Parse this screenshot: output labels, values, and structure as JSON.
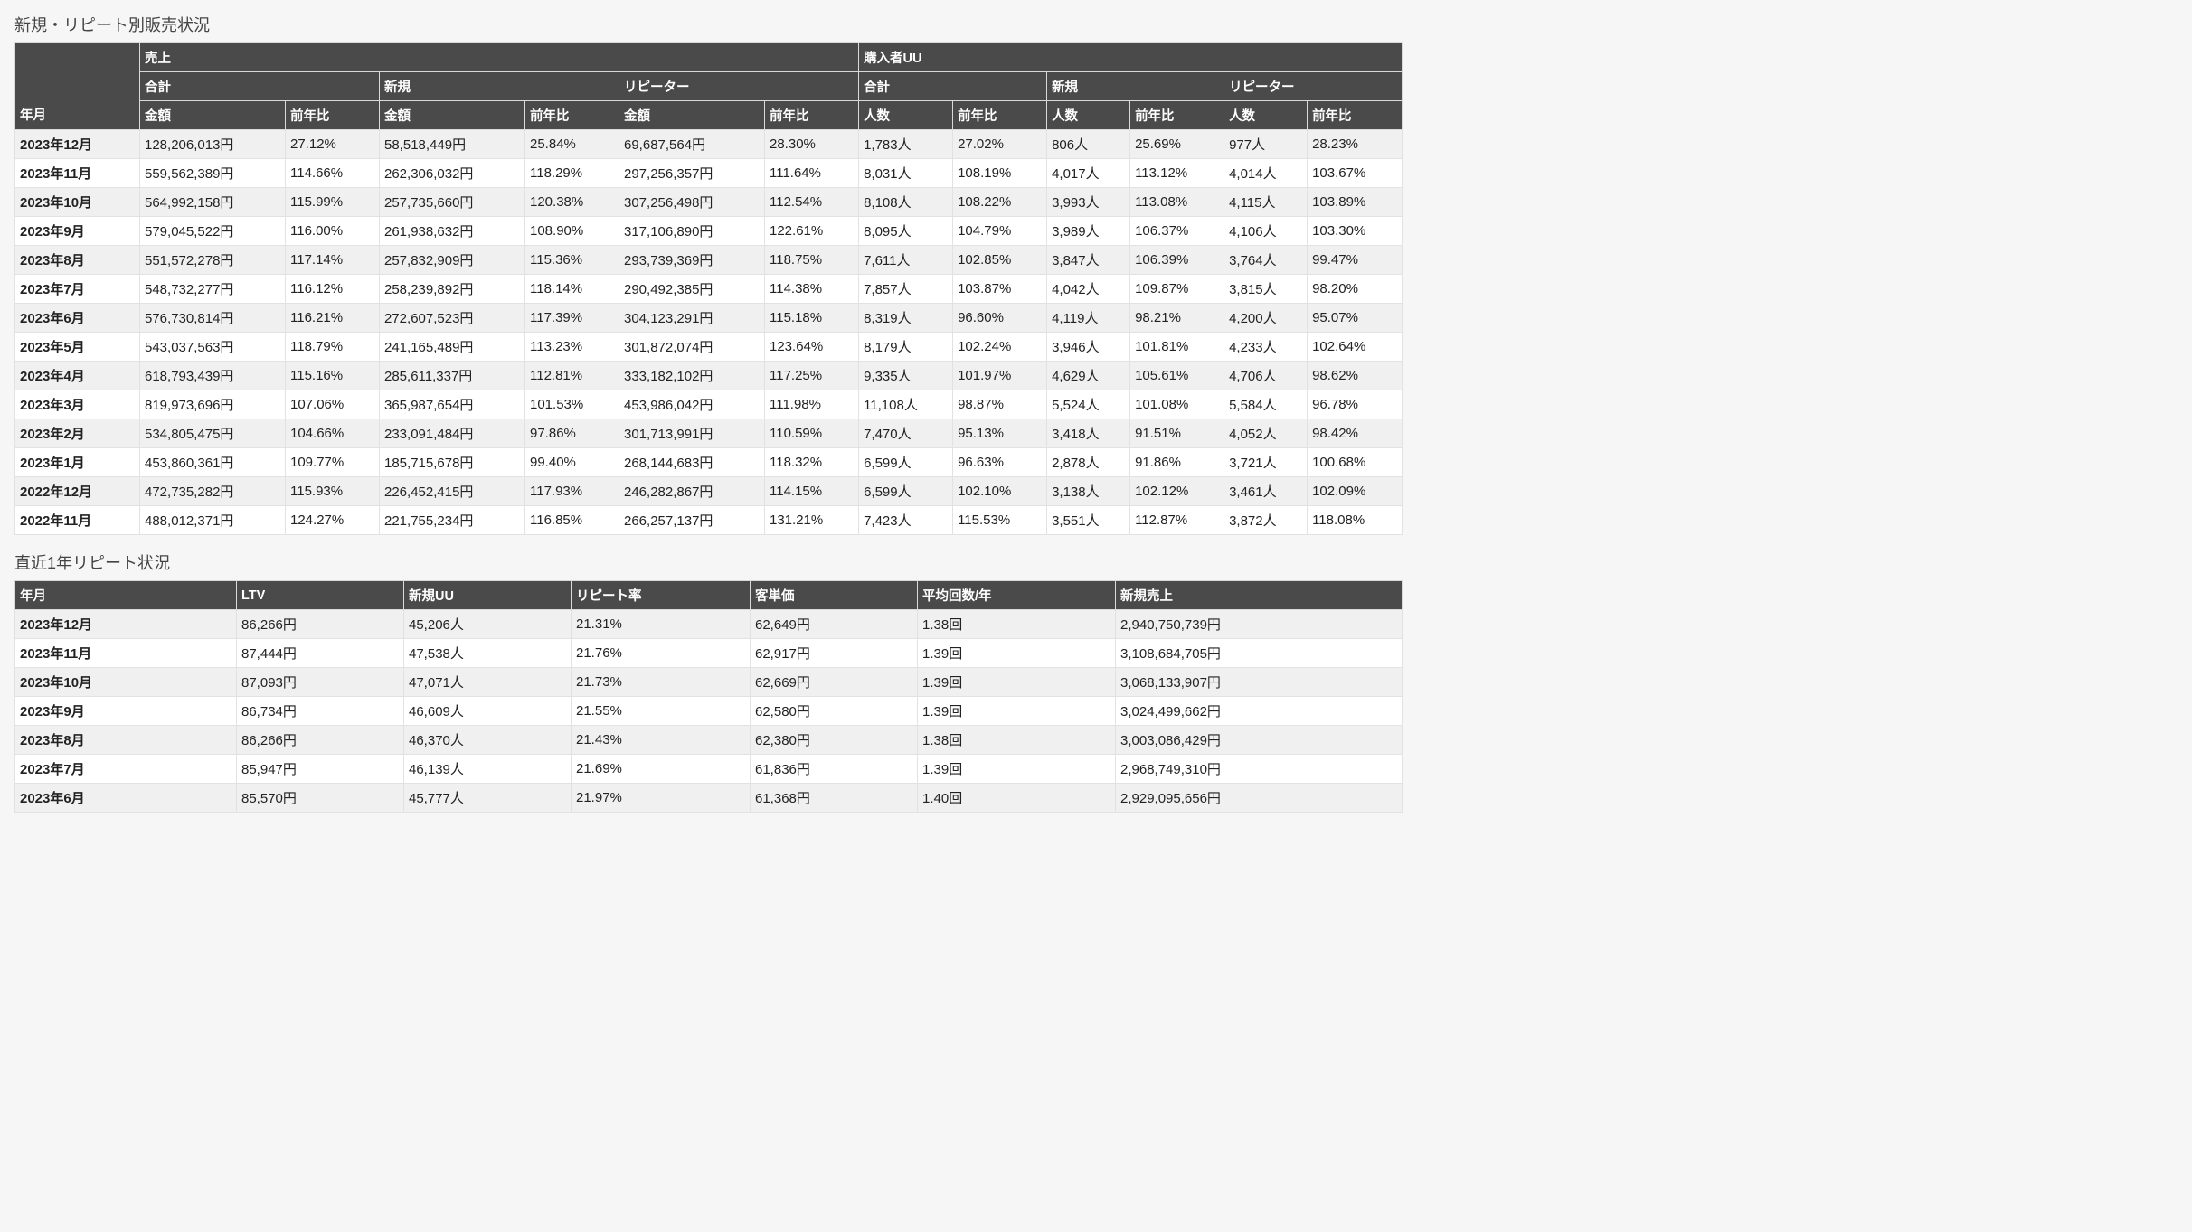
{
  "sales": {
    "title": "新規・リピート別販売状況",
    "header": {
      "yearmonth": "年月",
      "group_sales": "売上",
      "group_buyers": "購入者UU",
      "sub": [
        "合計",
        "新規",
        "リピーター",
        "合計",
        "新規",
        "リピーター"
      ],
      "cols": [
        "金額",
        "前年比",
        "金額",
        "前年比",
        "金額",
        "前年比",
        "人数",
        "前年比",
        "人数",
        "前年比",
        "人数",
        "前年比"
      ]
    },
    "rows": [
      [
        "2023年12月",
        "128,206,013円",
        "27.12%",
        "58,518,449円",
        "25.84%",
        "69,687,564円",
        "28.30%",
        "1,783人",
        "27.02%",
        "806人",
        "25.69%",
        "977人",
        "28.23%"
      ],
      [
        "2023年11月",
        "559,562,389円",
        "114.66%",
        "262,306,032円",
        "118.29%",
        "297,256,357円",
        "111.64%",
        "8,031人",
        "108.19%",
        "4,017人",
        "113.12%",
        "4,014人",
        "103.67%"
      ],
      [
        "2023年10月",
        "564,992,158円",
        "115.99%",
        "257,735,660円",
        "120.38%",
        "307,256,498円",
        "112.54%",
        "8,108人",
        "108.22%",
        "3,993人",
        "113.08%",
        "4,115人",
        "103.89%"
      ],
      [
        "2023年9月",
        "579,045,522円",
        "116.00%",
        "261,938,632円",
        "108.90%",
        "317,106,890円",
        "122.61%",
        "8,095人",
        "104.79%",
        "3,989人",
        "106.37%",
        "4,106人",
        "103.30%"
      ],
      [
        "2023年8月",
        "551,572,278円",
        "117.14%",
        "257,832,909円",
        "115.36%",
        "293,739,369円",
        "118.75%",
        "7,611人",
        "102.85%",
        "3,847人",
        "106.39%",
        "3,764人",
        "99.47%"
      ],
      [
        "2023年7月",
        "548,732,277円",
        "116.12%",
        "258,239,892円",
        "118.14%",
        "290,492,385円",
        "114.38%",
        "7,857人",
        "103.87%",
        "4,042人",
        "109.87%",
        "3,815人",
        "98.20%"
      ],
      [
        "2023年6月",
        "576,730,814円",
        "116.21%",
        "272,607,523円",
        "117.39%",
        "304,123,291円",
        "115.18%",
        "8,319人",
        "96.60%",
        "4,119人",
        "98.21%",
        "4,200人",
        "95.07%"
      ],
      [
        "2023年5月",
        "543,037,563円",
        "118.79%",
        "241,165,489円",
        "113.23%",
        "301,872,074円",
        "123.64%",
        "8,179人",
        "102.24%",
        "3,946人",
        "101.81%",
        "4,233人",
        "102.64%"
      ],
      [
        "2023年4月",
        "618,793,439円",
        "115.16%",
        "285,611,337円",
        "112.81%",
        "333,182,102円",
        "117.25%",
        "9,335人",
        "101.97%",
        "4,629人",
        "105.61%",
        "4,706人",
        "98.62%"
      ],
      [
        "2023年3月",
        "819,973,696円",
        "107.06%",
        "365,987,654円",
        "101.53%",
        "453,986,042円",
        "111.98%",
        "11,108人",
        "98.87%",
        "5,524人",
        "101.08%",
        "5,584人",
        "96.78%"
      ],
      [
        "2023年2月",
        "534,805,475円",
        "104.66%",
        "233,091,484円",
        "97.86%",
        "301,713,991円",
        "110.59%",
        "7,470人",
        "95.13%",
        "3,418人",
        "91.51%",
        "4,052人",
        "98.42%"
      ],
      [
        "2023年1月",
        "453,860,361円",
        "109.77%",
        "185,715,678円",
        "99.40%",
        "268,144,683円",
        "118.32%",
        "6,599人",
        "96.63%",
        "2,878人",
        "91.86%",
        "3,721人",
        "100.68%"
      ],
      [
        "2022年12月",
        "472,735,282円",
        "115.93%",
        "226,452,415円",
        "117.93%",
        "246,282,867円",
        "114.15%",
        "6,599人",
        "102.10%",
        "3,138人",
        "102.12%",
        "3,461人",
        "102.09%"
      ],
      [
        "2022年11月",
        "488,012,371円",
        "124.27%",
        "221,755,234円",
        "116.85%",
        "266,257,137円",
        "131.21%",
        "7,423人",
        "115.53%",
        "3,551人",
        "112.87%",
        "3,872人",
        "118.08%"
      ]
    ]
  },
  "repeat": {
    "title": "直近1年リピート状況",
    "cols": [
      "年月",
      "LTV",
      "新規UU",
      "リピート率",
      "客単価",
      "平均回数/年",
      "新規売上"
    ],
    "rows": [
      [
        "2023年12月",
        "86,266円",
        "45,206人",
        "21.31%",
        "62,649円",
        "1.38回",
        "2,940,750,739円"
      ],
      [
        "2023年11月",
        "87,444円",
        "47,538人",
        "21.76%",
        "62,917円",
        "1.39回",
        "3,108,684,705円"
      ],
      [
        "2023年10月",
        "87,093円",
        "47,071人",
        "21.73%",
        "62,669円",
        "1.39回",
        "3,068,133,907円"
      ],
      [
        "2023年9月",
        "86,734円",
        "46,609人",
        "21.55%",
        "62,580円",
        "1.39回",
        "3,024,499,662円"
      ],
      [
        "2023年8月",
        "86,266円",
        "46,370人",
        "21.43%",
        "62,380円",
        "1.38回",
        "3,003,086,429円"
      ],
      [
        "2023年7月",
        "85,947円",
        "46,139人",
        "21.69%",
        "61,836円",
        "1.39回",
        "2,968,749,310円"
      ],
      [
        "2023年6月",
        "85,570円",
        "45,777人",
        "21.97%",
        "61,368円",
        "1.40回",
        "2,929,095,656円"
      ]
    ]
  }
}
